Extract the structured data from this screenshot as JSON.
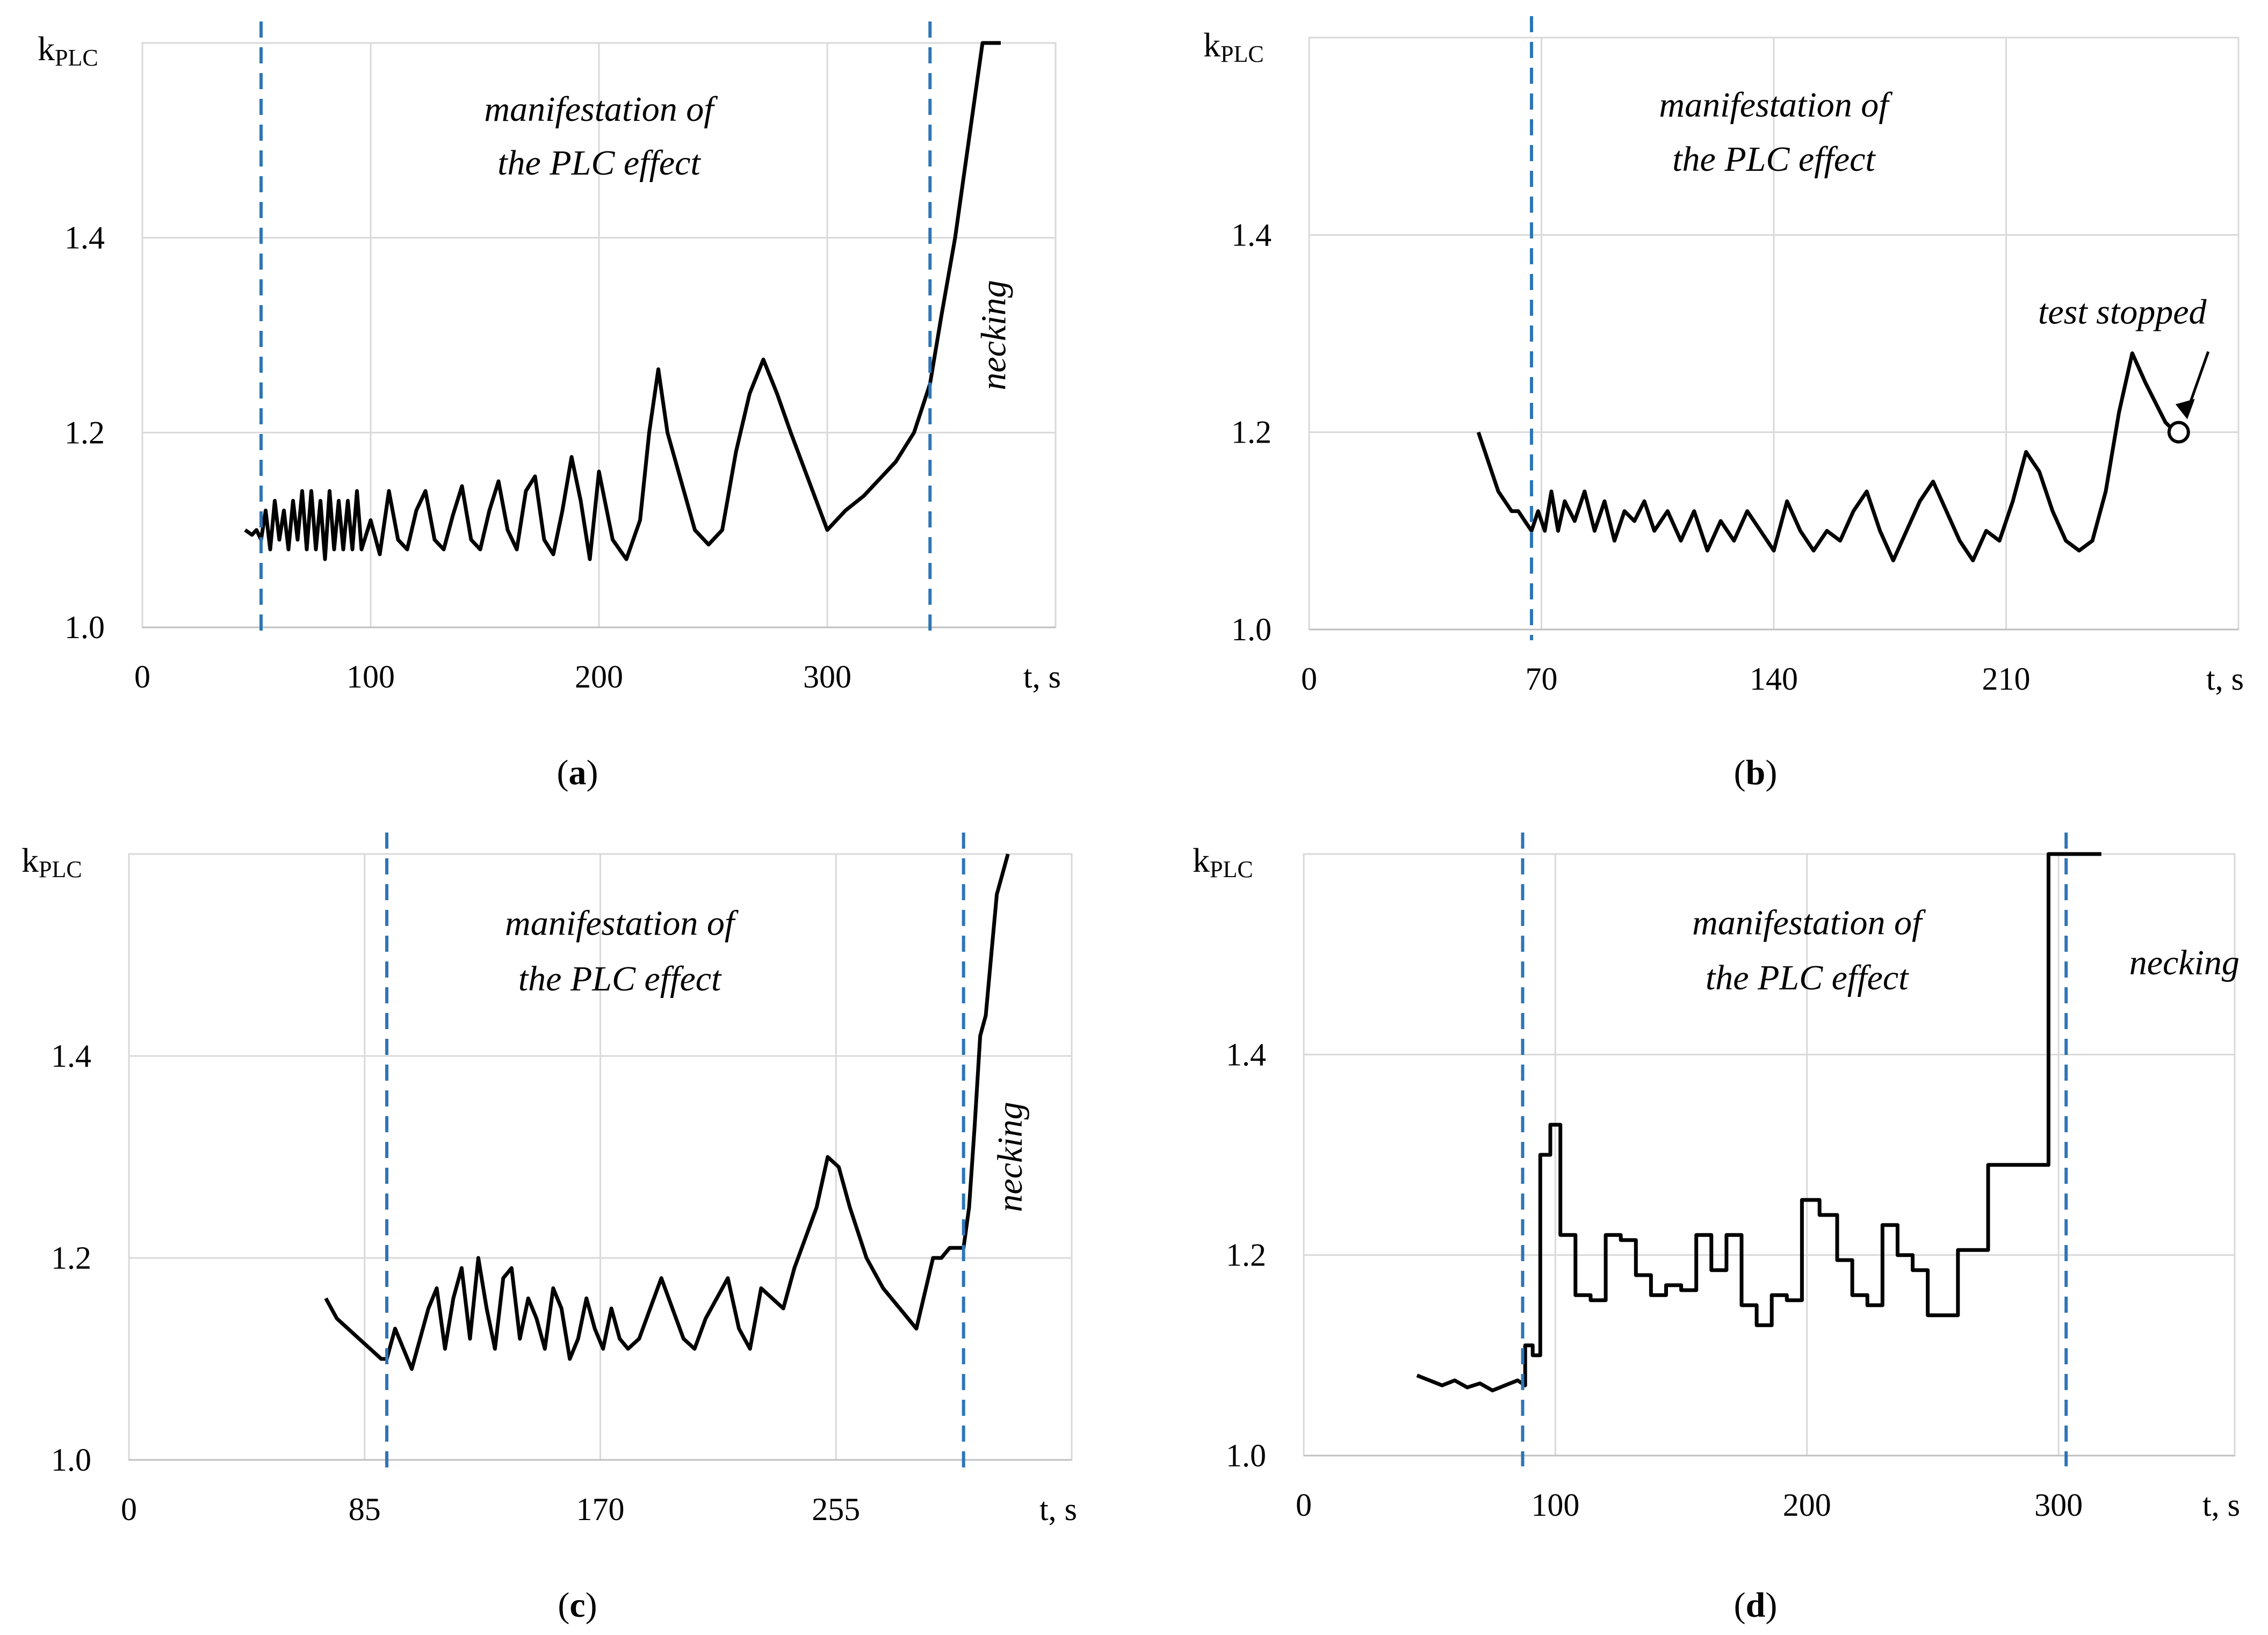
{
  "figure": {
    "ylabel_main": "k",
    "ylabel_sub": "PLC",
    "xlabel": "t, s"
  },
  "chart_data": [
    {
      "id": "a",
      "type": "line",
      "caption_letter": "a",
      "xlim": [
        0,
        400
      ],
      "ylim": [
        1.0,
        1.6
      ],
      "xticks": [
        0,
        100,
        200,
        300
      ],
      "yticks": [
        1.0,
        1.2,
        1.4
      ],
      "ytick_labels": [
        "1.0",
        "1.2",
        "1.4"
      ],
      "grid": true,
      "vlines": [
        52,
        345
      ],
      "annotations": [
        {
          "text": "manifestation of",
          "x": 200,
          "y": 1.52,
          "rotate": 0
        },
        {
          "text": "the PLC effect",
          "x": 200,
          "y": 1.465,
          "rotate": 0
        },
        {
          "text": "necking",
          "x": 378,
          "y": 1.3,
          "rotate": -90
        }
      ],
      "series": [
        {
          "name": "kPLC",
          "x": [
            45,
            48,
            50,
            52,
            54,
            56,
            58,
            60,
            62,
            64,
            66,
            68,
            70,
            72,
            74,
            76,
            78,
            80,
            82,
            84,
            86,
            88,
            90,
            92,
            94,
            96,
            100,
            104,
            108,
            112,
            116,
            120,
            124,
            128,
            132,
            136,
            140,
            144,
            148,
            152,
            156,
            160,
            164,
            168,
            172,
            176,
            180,
            184,
            188,
            192,
            196,
            200,
            206,
            212,
            218,
            222,
            226,
            230,
            236,
            242,
            248,
            254,
            260,
            266,
            272,
            278,
            284,
            292,
            300,
            308,
            316,
            324,
            330,
            338,
            345,
            350,
            356,
            362,
            368,
            372,
            376
          ],
          "values": [
            1.1,
            1.095,
            1.1,
            1.09,
            1.12,
            1.08,
            1.13,
            1.09,
            1.12,
            1.08,
            1.13,
            1.09,
            1.14,
            1.08,
            1.14,
            1.08,
            1.13,
            1.07,
            1.14,
            1.08,
            1.13,
            1.08,
            1.13,
            1.08,
            1.14,
            1.08,
            1.11,
            1.075,
            1.14,
            1.09,
            1.08,
            1.12,
            1.14,
            1.09,
            1.08,
            1.115,
            1.145,
            1.09,
            1.08,
            1.12,
            1.15,
            1.1,
            1.08,
            1.14,
            1.155,
            1.09,
            1.075,
            1.12,
            1.175,
            1.13,
            1.07,
            1.16,
            1.09,
            1.07,
            1.11,
            1.2,
            1.265,
            1.2,
            1.15,
            1.1,
            1.085,
            1.1,
            1.18,
            1.24,
            1.275,
            1.24,
            1.2,
            1.15,
            1.1,
            1.12,
            1.135,
            1.155,
            1.17,
            1.2,
            1.25,
            1.32,
            1.4,
            1.5,
            1.6,
            1.6,
            1.6
          ]
        }
      ]
    },
    {
      "id": "b",
      "type": "line",
      "caption_letter": "b",
      "xlim": [
        0,
        280
      ],
      "ylim": [
        1.0,
        1.6
      ],
      "xticks": [
        0,
        70,
        140,
        210
      ],
      "yticks": [
        1.0,
        1.2,
        1.4
      ],
      "ytick_labels": [
        "1.0",
        "1.2",
        "1.4"
      ],
      "grid": true,
      "vlines": [
        67
      ],
      "annotations": [
        {
          "text": "manifestation of",
          "x": 140,
          "y": 1.52,
          "rotate": 0
        },
        {
          "text": "the PLC effect",
          "x": 140,
          "y": 1.465,
          "rotate": 0
        },
        {
          "text": "test stopped",
          "x": 245,
          "y": 1.31,
          "rotate": 0
        }
      ],
      "marker": {
        "x": 262,
        "y": 1.2
      },
      "series": [
        {
          "name": "kPLC",
          "x": [
            51,
            53,
            55,
            57,
            59,
            61,
            63,
            65,
            67,
            69,
            71,
            73,
            75,
            77,
            80,
            83,
            86,
            89,
            92,
            95,
            98,
            101,
            104,
            108,
            112,
            116,
            120,
            124,
            128,
            132,
            136,
            140,
            144,
            148,
            152,
            156,
            160,
            164,
            168,
            172,
            176,
            180,
            184,
            188,
            192,
            196,
            200,
            204,
            208,
            212,
            216,
            220,
            224,
            228,
            232,
            236,
            240,
            244,
            248,
            252,
            255,
            258,
            261
          ],
          "values": [
            1.2,
            1.18,
            1.16,
            1.14,
            1.13,
            1.12,
            1.12,
            1.11,
            1.1,
            1.12,
            1.1,
            1.14,
            1.1,
            1.13,
            1.11,
            1.14,
            1.1,
            1.13,
            1.09,
            1.12,
            1.11,
            1.13,
            1.1,
            1.12,
            1.09,
            1.12,
            1.08,
            1.11,
            1.09,
            1.12,
            1.1,
            1.08,
            1.13,
            1.1,
            1.08,
            1.1,
            1.09,
            1.12,
            1.14,
            1.1,
            1.07,
            1.1,
            1.13,
            1.15,
            1.12,
            1.09,
            1.07,
            1.1,
            1.09,
            1.13,
            1.18,
            1.16,
            1.12,
            1.09,
            1.08,
            1.09,
            1.14,
            1.22,
            1.28,
            1.25,
            1.23,
            1.21,
            1.2
          ]
        }
      ]
    },
    {
      "id": "c",
      "type": "line",
      "caption_letter": "c",
      "xlim": [
        0,
        340
      ],
      "ylim": [
        1.0,
        1.6
      ],
      "xticks": [
        0,
        85,
        170,
        255
      ],
      "yticks": [
        1.0,
        1.2,
        1.4
      ],
      "ytick_labels": [
        "1.0",
        "1.2",
        "1.4"
      ],
      "grid": true,
      "vlines": [
        93,
        301
      ],
      "annotations": [
        {
          "text": "manifestation of",
          "x": 177,
          "y": 1.52,
          "rotate": 0
        },
        {
          "text": "the PLC effect",
          "x": 177,
          "y": 1.465,
          "rotate": 0
        },
        {
          "text": "necking",
          "x": 322,
          "y": 1.3,
          "rotate": -90
        }
      ],
      "series": [
        {
          "name": "kPLC",
          "x": [
            71,
            75,
            79,
            83,
            87,
            91,
            93,
            96,
            99,
            102,
            105,
            108,
            111,
            114,
            117,
            120,
            123,
            126,
            129,
            132,
            135,
            138,
            141,
            144,
            147,
            150,
            153,
            156,
            159,
            162,
            165,
            168,
            171,
            174,
            177,
            180,
            184,
            188,
            192,
            196,
            200,
            204,
            208,
            212,
            216,
            220,
            224,
            228,
            232,
            236,
            240,
            244,
            248,
            252,
            256,
            260,
            266,
            272,
            278,
            284,
            290,
            293,
            296,
            299,
            301,
            303,
            305,
            307,
            309,
            311,
            313,
            315,
            317
          ],
          "values": [
            1.16,
            1.14,
            1.13,
            1.12,
            1.11,
            1.1,
            1.1,
            1.13,
            1.11,
            1.09,
            1.12,
            1.15,
            1.17,
            1.11,
            1.16,
            1.19,
            1.12,
            1.2,
            1.15,
            1.11,
            1.18,
            1.19,
            1.12,
            1.16,
            1.14,
            1.11,
            1.17,
            1.15,
            1.1,
            1.12,
            1.16,
            1.13,
            1.11,
            1.15,
            1.12,
            1.11,
            1.12,
            1.15,
            1.18,
            1.15,
            1.12,
            1.11,
            1.14,
            1.16,
            1.18,
            1.13,
            1.11,
            1.17,
            1.16,
            1.15,
            1.19,
            1.22,
            1.25,
            1.3,
            1.29,
            1.25,
            1.2,
            1.17,
            1.15,
            1.13,
            1.2,
            1.2,
            1.21,
            1.21,
            1.21,
            1.25,
            1.33,
            1.42,
            1.44,
            1.5,
            1.56,
            1.58,
            1.6
          ]
        }
      ]
    },
    {
      "id": "d",
      "type": "line",
      "caption_letter": "d",
      "xlim": [
        0,
        370
      ],
      "ylim": [
        1.0,
        1.6
      ],
      "xticks": [
        0,
        100,
        200,
        300
      ],
      "yticks": [
        1.0,
        1.2,
        1.4
      ],
      "ytick_labels": [
        "1.0",
        "1.2",
        "1.4"
      ],
      "grid": true,
      "vlines": [
        87,
        303
      ],
      "annotations": [
        {
          "text": "manifestation of",
          "x": 200,
          "y": 1.52,
          "rotate": 0
        },
        {
          "text": "the PLC effect",
          "x": 200,
          "y": 1.465,
          "rotate": 0
        },
        {
          "text": "necking",
          "x": 350,
          "y": 1.48,
          "rotate": 0
        }
      ],
      "series": [
        {
          "name": "kPLC",
          "x": [
            45,
            50,
            55,
            60,
            65,
            70,
            75,
            80,
            85,
            88,
            88,
            91,
            91,
            94,
            94,
            98,
            98,
            102,
            102,
            108,
            108,
            114,
            114,
            120,
            120,
            126,
            126,
            132,
            132,
            138,
            138,
            144,
            144,
            150,
            150,
            156,
            156,
            162,
            162,
            168,
            168,
            174,
            174,
            180,
            180,
            186,
            186,
            192,
            192,
            198,
            198,
            205,
            205,
            212,
            212,
            218,
            218,
            224,
            224,
            230,
            230,
            236,
            236,
            242,
            242,
            248,
            248,
            254,
            254,
            260,
            260,
            266,
            266,
            272,
            272,
            278,
            278,
            284,
            284,
            290,
            290,
            296,
            296,
            303,
            303,
            306,
            306,
            317
          ],
          "values": [
            1.08,
            1.075,
            1.07,
            1.075,
            1.068,
            1.072,
            1.065,
            1.07,
            1.075,
            1.07,
            1.11,
            1.11,
            1.1,
            1.1,
            1.3,
            1.3,
            1.33,
            1.33,
            1.22,
            1.22,
            1.16,
            1.16,
            1.155,
            1.155,
            1.22,
            1.22,
            1.215,
            1.215,
            1.18,
            1.18,
            1.16,
            1.16,
            1.17,
            1.17,
            1.165,
            1.165,
            1.22,
            1.22,
            1.185,
            1.185,
            1.22,
            1.22,
            1.15,
            1.15,
            1.13,
            1.13,
            1.16,
            1.16,
            1.155,
            1.155,
            1.255,
            1.255,
            1.24,
            1.24,
            1.195,
            1.195,
            1.16,
            1.16,
            1.15,
            1.15,
            1.23,
            1.23,
            1.2,
            1.2,
            1.185,
            1.185,
            1.14,
            1.14,
            1.14,
            1.14,
            1.205,
            1.205,
            1.205,
            1.205,
            1.29,
            1.29,
            1.29,
            1.29,
            1.29,
            1.29,
            1.29,
            1.29,
            1.6,
            1.6,
            1.6,
            1.6,
            1.6,
            1.6
          ]
        }
      ]
    }
  ]
}
